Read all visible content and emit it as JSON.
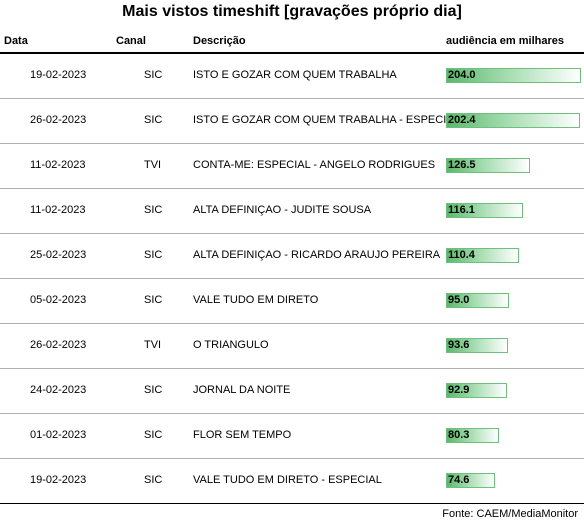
{
  "title": "Mais vistos timeshift [gravações próprio dia]",
  "header": {
    "date": "Data",
    "channel": "Canal",
    "description": "Descrição",
    "audience": "audiência em milhares"
  },
  "source": "Fonte: CAEM/MediaMonitor",
  "colors": {
    "bar_start": "#5ab86a",
    "bar_end": "#ffffff",
    "bar_border": "#6fbf7e"
  },
  "chart_data": {
    "type": "table",
    "title": "Mais vistos timeshift [gravações próprio dia]",
    "columns": [
      "Data",
      "Canal",
      "Descrição",
      "audiência em milhares"
    ],
    "bar_column": "audiência em milhares",
    "bar_max": 204.0,
    "rows": [
      {
        "date": "19-02-2023",
        "channel": "SIC",
        "description": "ISTO E GOZAR COM QUEM TRABALHA",
        "audience": 204.0,
        "audience_label": "204.0"
      },
      {
        "date": "26-02-2023",
        "channel": "SIC",
        "description": "ISTO E GOZAR COM QUEM TRABALHA - ESPECIAL",
        "audience": 202.4,
        "audience_label": "202.4"
      },
      {
        "date": "11-02-2023",
        "channel": "TVI",
        "description": "CONTA-ME: ESPECIAL - ANGELO RODRIGUES",
        "audience": 126.5,
        "audience_label": "126.5"
      },
      {
        "date": "11-02-2023",
        "channel": "SIC",
        "description": "ALTA DEFINIÇAO - JUDITE SOUSA",
        "audience": 116.1,
        "audience_label": "116.1"
      },
      {
        "date": "25-02-2023",
        "channel": "SIC",
        "description": "ALTA DEFINIÇAO - RICARDO ARAUJO PEREIRA",
        "audience": 110.4,
        "audience_label": "110.4"
      },
      {
        "date": "05-02-2023",
        "channel": "SIC",
        "description": "VALE TUDO EM DIRETO",
        "audience": 95.0,
        "audience_label": "95.0"
      },
      {
        "date": "26-02-2023",
        "channel": "TVI",
        "description": "O TRIANGULO",
        "audience": 93.6,
        "audience_label": "93.6"
      },
      {
        "date": "24-02-2023",
        "channel": "SIC",
        "description": "JORNAL DA NOITE",
        "audience": 92.9,
        "audience_label": "92.9"
      },
      {
        "date": "01-02-2023",
        "channel": "SIC",
        "description": "FLOR SEM TEMPO",
        "audience": 80.3,
        "audience_label": "80.3"
      },
      {
        "date": "19-02-2023",
        "channel": "SIC",
        "description": "VALE TUDO EM DIRETO - ESPECIAL",
        "audience": 74.6,
        "audience_label": "74.6"
      }
    ]
  }
}
